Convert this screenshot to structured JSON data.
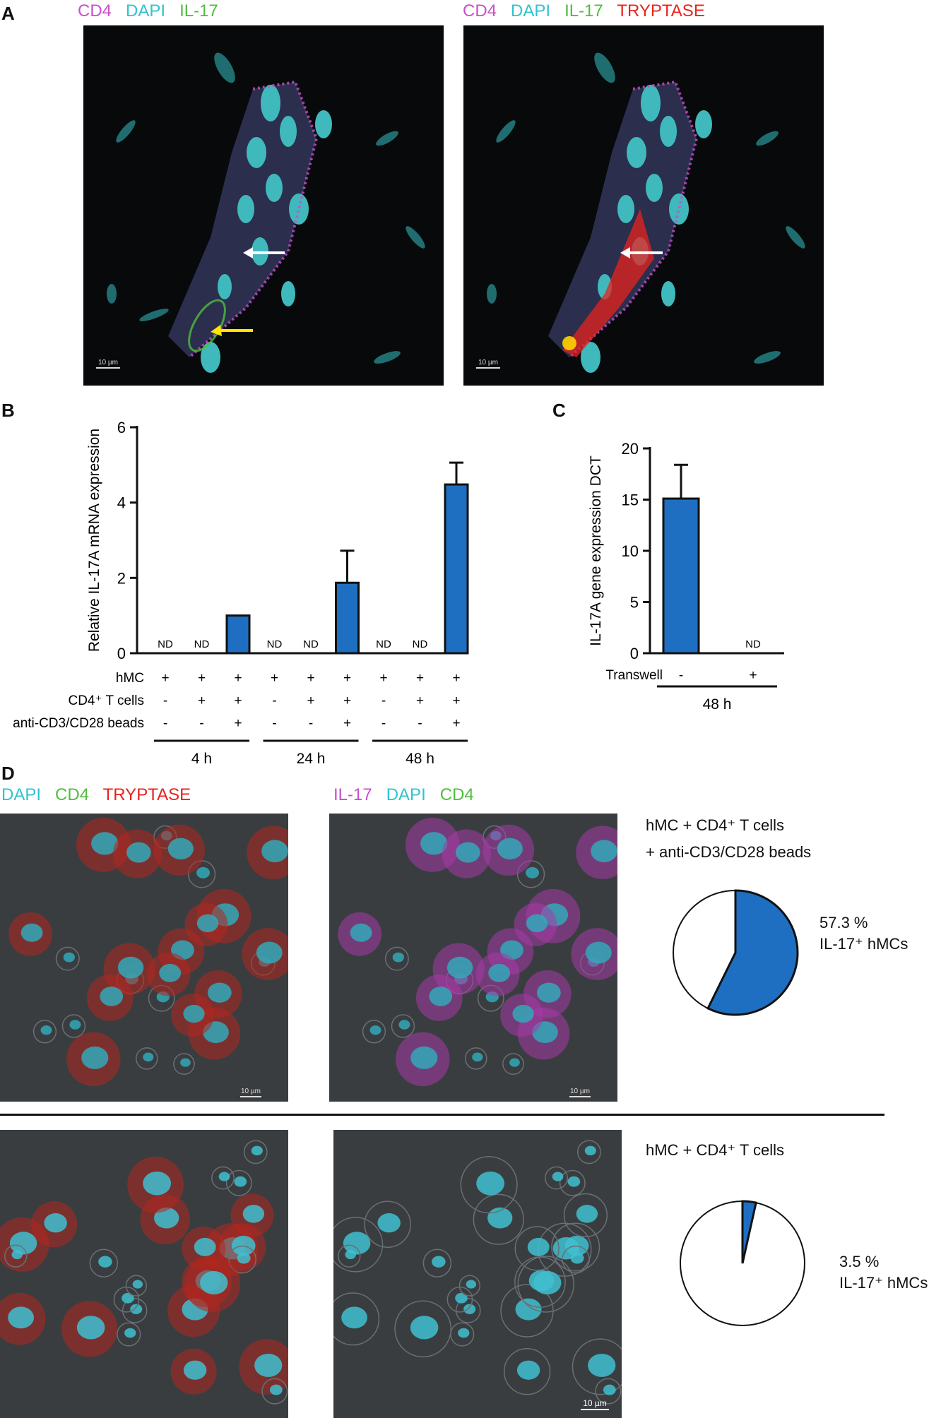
{
  "panelA": {
    "letter": "A",
    "left": {
      "labels": [
        {
          "text": "CD4",
          "color": "#c94fcb"
        },
        {
          "text": "DAPI",
          "color": "#2fc3d0"
        },
        {
          "text": "IL-17",
          "color": "#4fbe3d"
        }
      ],
      "scale": "10 µm"
    },
    "right": {
      "labels": [
        {
          "text": "CD4",
          "color": "#c94fcb"
        },
        {
          "text": "DAPI",
          "color": "#2fc3d0"
        },
        {
          "text": "IL-17",
          "color": "#4fbe3d"
        },
        {
          "text": "TRYPTASE",
          "color": "#e8231e"
        }
      ],
      "scale": "10 µm"
    }
  },
  "panelB": {
    "letter": "B"
  },
  "panelC": {
    "letter": "C"
  },
  "panelD": {
    "letter": "D",
    "top_left_labels": [
      {
        "text": "DAPI",
        "color": "#2fc3d0"
      },
      {
        "text": "CD4",
        "color": "#4fbe3d"
      },
      {
        "text": "TRYPTASE",
        "color": "#e8231e"
      }
    ],
    "top_right_labels": [
      {
        "text": "IL-17",
        "color": "#c94fcb"
      },
      {
        "text": "DAPI",
        "color": "#2fc3d0"
      },
      {
        "text": "CD4",
        "color": "#4fbe3d"
      }
    ],
    "scale": "10 µm",
    "cond1_line1": "hMC + CD4⁺ T cells",
    "cond1_line2": "+ anti-CD3/CD28 beads",
    "pie1_value": "57.3 %",
    "pie1_label": "IL-17⁺ hMCs",
    "cond2_line1": "hMC + CD4⁺ T cells",
    "pie2_value": "3.5 %",
    "pie2_label": "IL-17⁺ hMCs"
  },
  "chart_data": [
    {
      "type": "bar",
      "ylabel": "Relative IL-17A mRNA expression",
      "ylim": [
        0,
        6
      ],
      "yticks": [
        0,
        2,
        4,
        6
      ],
      "values": [
        null,
        null,
        1.0,
        null,
        null,
        1.87,
        null,
        null,
        4.48
      ],
      "errors": [
        null,
        null,
        0,
        null,
        null,
        0.85,
        null,
        null,
        0.58
      ],
      "nd_label": "ND",
      "rows": [
        {
          "label": "hMC",
          "signs": [
            "+",
            "+",
            "+",
            "+",
            "+",
            "+",
            "+",
            "+",
            "+"
          ]
        },
        {
          "label": "CD4⁺ T cells",
          "signs": [
            "-",
            "+",
            "+",
            "-",
            "+",
            "+",
            "-",
            "+",
            "+"
          ]
        },
        {
          "label": "anti-CD3/CD28 beads",
          "signs": [
            "-",
            "-",
            "+",
            "-",
            "-",
            "+",
            "-",
            "-",
            "+"
          ]
        }
      ],
      "groups": [
        "4 h",
        "24 h",
        "48 h"
      ],
      "color": "#1e6fc1"
    },
    {
      "type": "bar",
      "ylabel": "IL-17A gene expression DCT",
      "ylim": [
        0,
        20
      ],
      "yticks": [
        0,
        5,
        10,
        15,
        20
      ],
      "values": [
        15.1,
        null
      ],
      "errors": [
        3.3,
        null
      ],
      "nd_label": "ND",
      "rows": [
        {
          "label": "Transwell",
          "signs": [
            "-",
            "+"
          ]
        }
      ],
      "groups": [
        "48 h"
      ],
      "color": "#1e6fc1"
    },
    {
      "type": "pie",
      "values": [
        57.3,
        42.7
      ],
      "colors": [
        "#1e6fc1",
        "#ffffff"
      ]
    },
    {
      "type": "pie",
      "values": [
        3.5,
        96.5
      ],
      "colors": [
        "#1e6fc1",
        "#ffffff"
      ]
    }
  ]
}
